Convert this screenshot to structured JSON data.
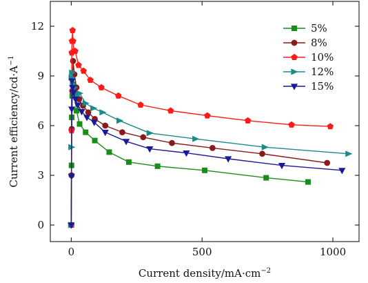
{
  "chart_data": {
    "type": "line",
    "title": "",
    "xlabel": "Current density/mA·cm",
    "xlabel_sup": "−2",
    "ylabel": "Current efficiency/cd·A",
    "ylabel_sup": "−1",
    "xlim": [
      -80,
      1100
    ],
    "ylim": [
      -1.0,
      13.5
    ],
    "xticks": [
      0,
      500,
      1000
    ],
    "xtick_labels": [
      "0",
      "500",
      "1000"
    ],
    "yticks": [
      0,
      3,
      6,
      9,
      12
    ],
    "ytick_labels": [
      "0",
      "3",
      "6",
      "9",
      "12"
    ],
    "grid": false,
    "legend_position": "top-right",
    "series": [
      {
        "name": "5%",
        "color": "#1a8c1a",
        "marker": "square",
        "x": [
          0,
          1,
          2,
          4,
          6,
          10,
          20,
          32,
          55,
          90,
          145,
          220,
          330,
          510,
          745,
          905
        ],
        "y": [
          0,
          3.6,
          6.5,
          7.8,
          8.5,
          8.1,
          6.9,
          6.1,
          5.6,
          5.1,
          4.4,
          3.8,
          3.55,
          3.3,
          2.85,
          2.6
        ]
      },
      {
        "name": "8%",
        "color": "#8b1a1a",
        "marker": "circle",
        "x": [
          0,
          1,
          2,
          4,
          7,
          12,
          20,
          30,
          45,
          65,
          90,
          130,
          195,
          275,
          385,
          540,
          730,
          978
        ],
        "y": [
          0,
          3.0,
          5.8,
          8.1,
          9.9,
          9.1,
          8.3,
          7.6,
          7.2,
          6.8,
          6.4,
          6.0,
          5.6,
          5.3,
          4.95,
          4.65,
          4.3,
          3.75
        ]
      },
      {
        "name": "10%",
        "color": "#ff1a1a",
        "marker": "pentagon",
        "x": [
          0,
          1,
          2,
          3,
          5,
          7,
          10,
          15,
          28,
          47,
          73,
          115,
          180,
          265,
          380,
          520,
          675,
          842,
          990
        ],
        "y": [
          0,
          5.7,
          10.4,
          11.1,
          11.75,
          11.1,
          10.5,
          10.5,
          9.65,
          9.3,
          8.75,
          8.3,
          7.8,
          7.25,
          6.9,
          6.6,
          6.3,
          6.05,
          5.95
        ]
      },
      {
        "name": "12%",
        "color": "#1a8a8a",
        "marker": "triangle-right",
        "x": [
          0,
          1,
          2,
          4,
          7,
          12,
          20,
          32,
          55,
          85,
          120,
          185,
          300,
          475,
          740,
          1060
        ],
        "y": [
          0,
          4.7,
          8.9,
          9.2,
          8.5,
          8.3,
          7.8,
          7.95,
          7.35,
          7.05,
          6.8,
          6.3,
          5.55,
          5.2,
          4.7,
          4.3
        ]
      },
      {
        "name": "15%",
        "color": "#1a1a99",
        "marker": "triangle-down",
        "x": [
          0,
          1,
          2,
          3,
          5,
          9,
          16,
          25,
          40,
          60,
          88,
          130,
          210,
          300,
          440,
          600,
          805,
          1035
        ],
        "y": [
          0,
          2.95,
          7.0,
          8.7,
          8.3,
          8.0,
          7.6,
          7.25,
          6.85,
          6.5,
          6.2,
          5.6,
          5.05,
          4.6,
          4.35,
          4.0,
          3.6,
          3.3
        ]
      }
    ]
  }
}
